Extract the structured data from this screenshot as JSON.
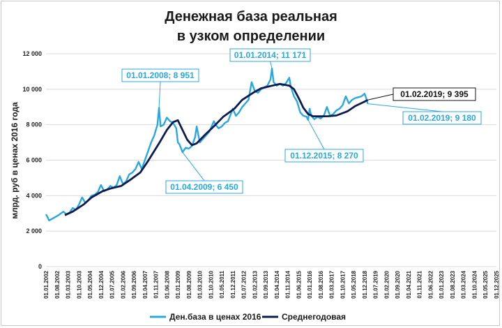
{
  "chart_data": {
    "type": "line",
    "title": "Денежная база реальная\nв узком определении",
    "title_lines": [
      "Денежная база реальная",
      "в узком определении"
    ],
    "ylabel": "млрд. руб  в ценах 2016 года",
    "xlabel": "",
    "ylim": [
      0,
      12000
    ],
    "yticks": [
      0,
      2000,
      4000,
      6000,
      8000,
      10000,
      12000
    ],
    "ytick_labels": [
      "0",
      "2 000",
      "4 000",
      "6 000",
      "8 000",
      "10 000",
      "12 000"
    ],
    "x_start": "2002-01",
    "x_end": "2025-12",
    "x_tick_labels": [
      "01.01.2002",
      "01.08.2002",
      "01.03.2003",
      "01.10.2003",
      "01.05.2004",
      "01.12.2004",
      "01.07.2005",
      "01.02.2006",
      "01.09.2006",
      "01.04.2007",
      "01.11.2007",
      "01.06.2008",
      "01.01.2009",
      "01.08.2009",
      "01.03.2010",
      "01.10.2010",
      "01.05.2011",
      "01.12.2011",
      "01.07.2012",
      "01.02.2013",
      "01.09.2013",
      "01.04.2014",
      "01.11.2014",
      "01.06.2015",
      "01.01.2016",
      "01.08.2016",
      "01.03.2017",
      "01.10.2017",
      "01.05.2018",
      "01.12.2018",
      "01.07.2019",
      "01.02.2020",
      "01.09.2020",
      "01.04.2021",
      "01.11.2021",
      "01.06.2022",
      "01.01.2023",
      "01.08.2023",
      "01.03.2024",
      "01.10.2024",
      "01.05.2025",
      "01.12.2025"
    ],
    "grid": "horizontal",
    "legend_position": "bottom",
    "colors": {
      "monthly": "#29a8e0",
      "average": "#0d1b4f",
      "grid": "#d9d9d9"
    },
    "series": [
      {
        "name": "Ден.база в ценах 2016",
        "color": "#29a8e0",
        "points": [
          [
            "2002-01",
            2950
          ],
          [
            "2002-03",
            2600
          ],
          [
            "2002-06",
            2750
          ],
          [
            "2002-09",
            2900
          ],
          [
            "2002-12",
            3100
          ],
          [
            "2003-02",
            2950
          ],
          [
            "2003-04",
            3050
          ],
          [
            "2003-06",
            3300
          ],
          [
            "2003-08",
            3200
          ],
          [
            "2003-10",
            3500
          ],
          [
            "2003-12",
            3900
          ],
          [
            "2004-02",
            3600
          ],
          [
            "2004-04",
            3750
          ],
          [
            "2004-06",
            4000
          ],
          [
            "2004-08",
            4050
          ],
          [
            "2004-10",
            4200
          ],
          [
            "2004-12",
            4600
          ],
          [
            "2005-02",
            4250
          ],
          [
            "2005-04",
            4350
          ],
          [
            "2005-06",
            4550
          ],
          [
            "2005-08",
            4450
          ],
          [
            "2005-10",
            4600
          ],
          [
            "2005-12",
            5100
          ],
          [
            "2006-02",
            4650
          ],
          [
            "2006-04",
            4800
          ],
          [
            "2006-06",
            5200
          ],
          [
            "2006-08",
            5300
          ],
          [
            "2006-10",
            5500
          ],
          [
            "2006-12",
            5900
          ],
          [
            "2007-02",
            5500
          ],
          [
            "2007-04",
            6000
          ],
          [
            "2007-06",
            6500
          ],
          [
            "2007-08",
            7000
          ],
          [
            "2007-10",
            7400
          ],
          [
            "2007-12",
            8000
          ],
          [
            "2008-01",
            8951
          ],
          [
            "2008-02",
            7900
          ],
          [
            "2008-04",
            8000
          ],
          [
            "2008-06",
            8400
          ],
          [
            "2008-08",
            8200
          ],
          [
            "2008-10",
            8100
          ],
          [
            "2008-12",
            7800
          ],
          [
            "2009-01",
            7000
          ],
          [
            "2009-02",
            6900
          ],
          [
            "2009-04",
            6450
          ],
          [
            "2009-06",
            6700
          ],
          [
            "2009-08",
            6650
          ],
          [
            "2009-10",
            6800
          ],
          [
            "2009-12",
            7300
          ],
          [
            "2010-01",
            7900
          ],
          [
            "2010-03",
            7000
          ],
          [
            "2010-05",
            7200
          ],
          [
            "2010-07",
            7400
          ],
          [
            "2010-09",
            7600
          ],
          [
            "2010-12",
            8200
          ],
          [
            "2011-01",
            8000
          ],
          [
            "2011-03",
            7800
          ],
          [
            "2011-05",
            7900
          ],
          [
            "2011-07",
            8100
          ],
          [
            "2011-09",
            8200
          ],
          [
            "2011-12",
            8900
          ],
          [
            "2012-02",
            8500
          ],
          [
            "2012-04",
            8700
          ],
          [
            "2012-06",
            9000
          ],
          [
            "2012-08",
            9200
          ],
          [
            "2012-10",
            9400
          ],
          [
            "2012-12",
            10400
          ],
          [
            "2013-02",
            9900
          ],
          [
            "2013-04",
            9800
          ],
          [
            "2013-06",
            10000
          ],
          [
            "2013-08",
            10100
          ],
          [
            "2013-10",
            10200
          ],
          [
            "2013-12",
            10550
          ],
          [
            "2014-01",
            11171
          ],
          [
            "2014-02",
            10400
          ],
          [
            "2014-04",
            10200
          ],
          [
            "2014-06",
            10300
          ],
          [
            "2014-08",
            10200
          ],
          [
            "2014-10",
            10350
          ],
          [
            "2014-12",
            10650
          ],
          [
            "2015-01",
            10150
          ],
          [
            "2015-03",
            9600
          ],
          [
            "2015-05",
            9300
          ],
          [
            "2015-07",
            8700
          ],
          [
            "2015-09",
            8500
          ],
          [
            "2015-11",
            8450
          ],
          [
            "2015-12",
            8270
          ],
          [
            "2016-01",
            8900
          ],
          [
            "2016-02",
            8500
          ],
          [
            "2016-04",
            8300
          ],
          [
            "2016-06",
            8450
          ],
          [
            "2016-08",
            8350
          ],
          [
            "2016-10",
            8500
          ],
          [
            "2016-12",
            9000
          ],
          [
            "2017-02",
            8500
          ],
          [
            "2017-04",
            8600
          ],
          [
            "2017-06",
            8800
          ],
          [
            "2017-08",
            8900
          ],
          [
            "2017-10",
            9100
          ],
          [
            "2017-12",
            9600
          ],
          [
            "2018-02",
            9200
          ],
          [
            "2018-04",
            9400
          ],
          [
            "2018-06",
            9500
          ],
          [
            "2018-08",
            9550
          ],
          [
            "2018-10",
            9600
          ],
          [
            "2018-12",
            9750
          ],
          [
            "2019-01",
            9500
          ],
          [
            "2019-02",
            9180
          ]
        ]
      },
      {
        "name": "Среднегодовая",
        "color": "#0d1b4f",
        "points": [
          [
            "2003-01",
            2900
          ],
          [
            "2003-06",
            3100
          ],
          [
            "2004-01",
            3500
          ],
          [
            "2004-06",
            3900
          ],
          [
            "2005-01",
            4250
          ],
          [
            "2005-06",
            4400
          ],
          [
            "2006-01",
            4550
          ],
          [
            "2006-06",
            4850
          ],
          [
            "2007-01",
            5300
          ],
          [
            "2007-06",
            5950
          ],
          [
            "2008-01",
            6950
          ],
          [
            "2008-06",
            7700
          ],
          [
            "2008-10",
            8150
          ],
          [
            "2009-01",
            8250
          ],
          [
            "2009-04",
            7700
          ],
          [
            "2009-07",
            7150
          ],
          [
            "2009-10",
            6850
          ],
          [
            "2010-01",
            6950
          ],
          [
            "2010-06",
            7400
          ],
          [
            "2011-01",
            8000
          ],
          [
            "2011-06",
            8450
          ],
          [
            "2012-01",
            8900
          ],
          [
            "2012-06",
            9400
          ],
          [
            "2013-01",
            9800
          ],
          [
            "2013-06",
            10050
          ],
          [
            "2014-01",
            10200
          ],
          [
            "2014-06",
            10300
          ],
          [
            "2014-12",
            10200
          ],
          [
            "2015-03",
            10000
          ],
          [
            "2015-06",
            9500
          ],
          [
            "2015-09",
            8950
          ],
          [
            "2015-12",
            8600
          ],
          [
            "2016-03",
            8480
          ],
          [
            "2016-08",
            8470
          ],
          [
            "2017-01",
            8480
          ],
          [
            "2017-06",
            8520
          ],
          [
            "2018-01",
            8750
          ],
          [
            "2018-06",
            9050
          ],
          [
            "2018-12",
            9300
          ],
          [
            "2019-02",
            9395
          ]
        ]
      }
    ],
    "annotations": [
      {
        "text": "01.01.2008; 8 951",
        "style": "cyan"
      },
      {
        "text": "01.04.2009; 6 450",
        "style": "cyan"
      },
      {
        "text": "01.01.2014; 11 171",
        "style": "cyan"
      },
      {
        "text": "01.12.2015; 8 270",
        "style": "cyan"
      },
      {
        "text": "01.02.2019;  9 395",
        "style": "dark"
      },
      {
        "text": "01.02.2019; 9 180",
        "style": "cyan"
      }
    ]
  }
}
